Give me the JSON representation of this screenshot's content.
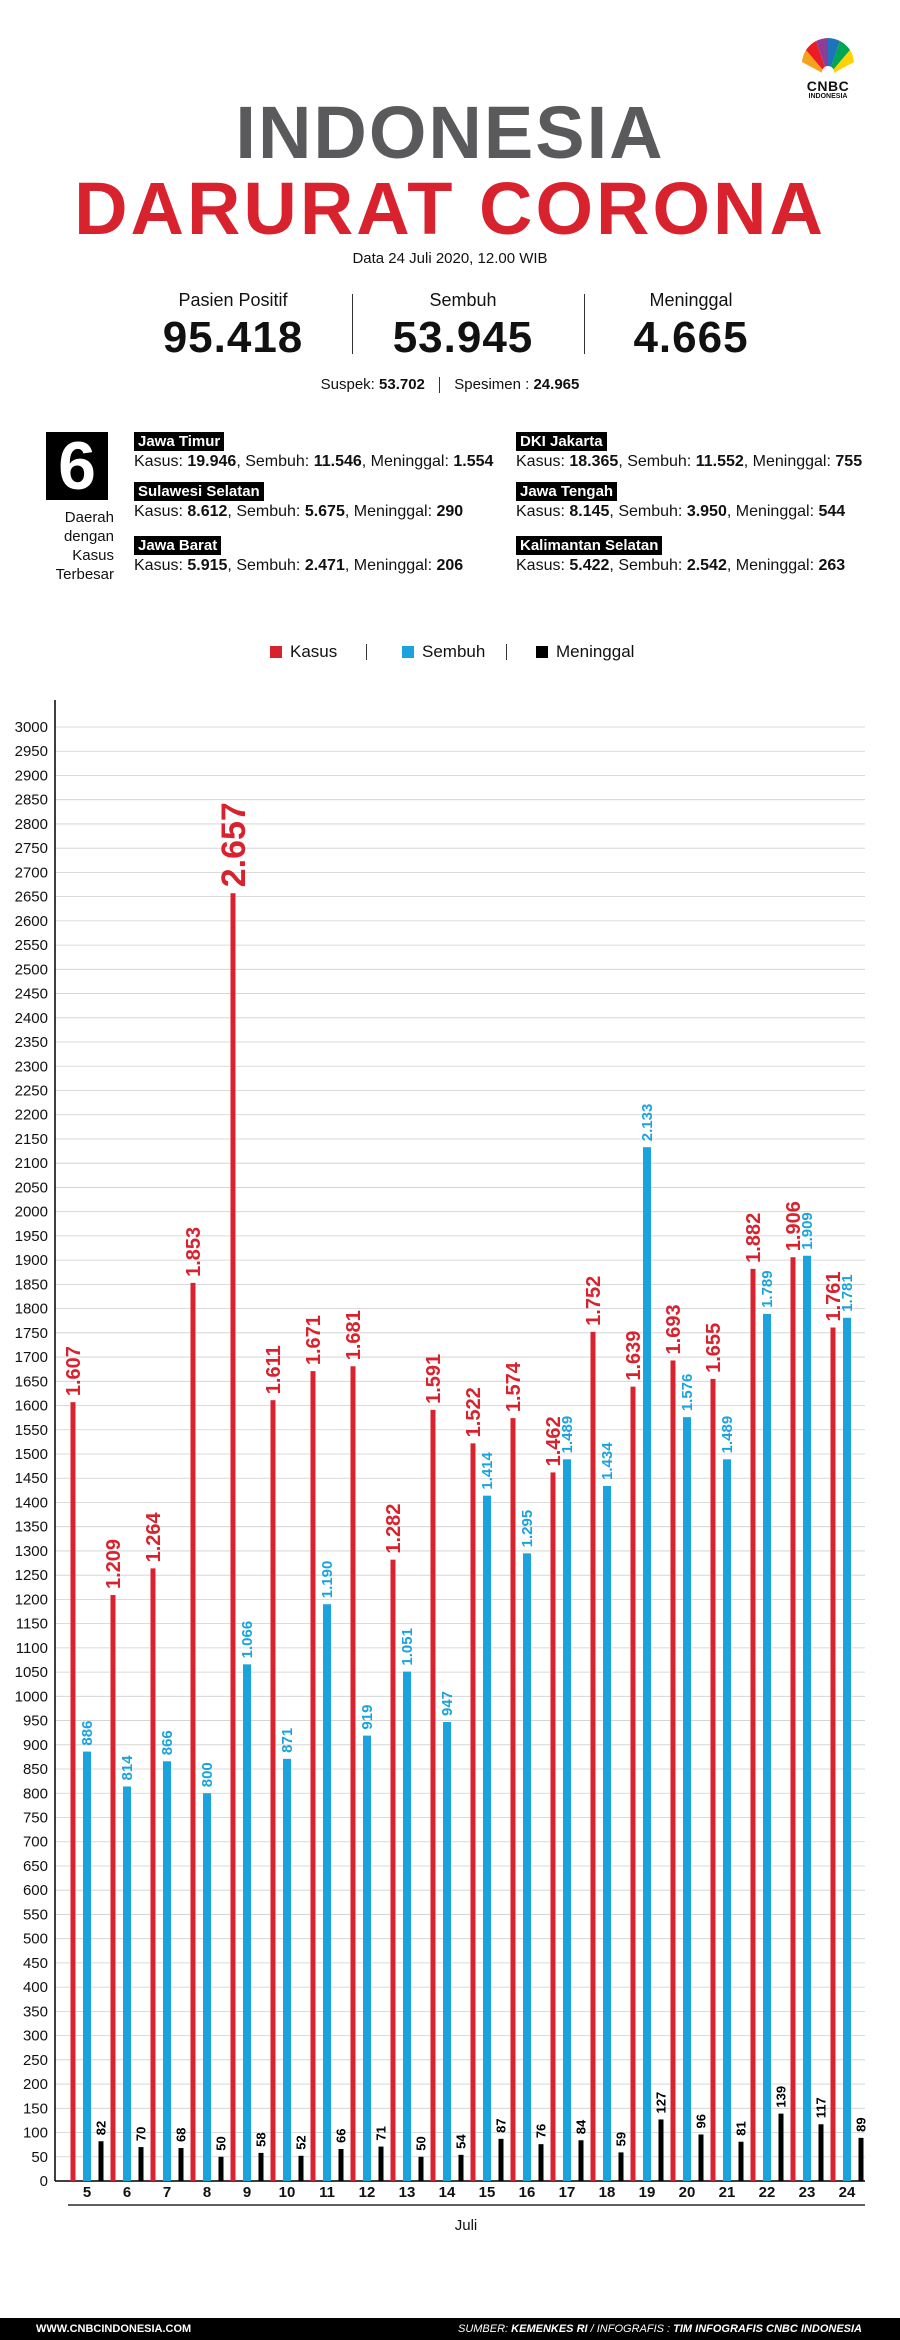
{
  "brand": {
    "name": "CNBC",
    "sub": "INDONESIA"
  },
  "title_line1": "INDONESIA",
  "title_line2": "DARURAT CORONA",
  "date": "Data 24 Juli 2020, 12.00 WIB",
  "stats": [
    {
      "label": "Pasien Positif",
      "value": "95.418"
    },
    {
      "label": "Sembuh",
      "value": "53.945"
    },
    {
      "label": "Meninggal",
      "value": "4.665"
    }
  ],
  "suspek": {
    "label": "Suspek:",
    "value": "53.702",
    "label2": "Spesimen :",
    "value2": "24.965"
  },
  "top_regions": {
    "count": "6",
    "caption": [
      "Daerah",
      "dengan",
      "Kasus",
      "Terbesar"
    ],
    "items": [
      {
        "name": "Jawa Timur",
        "kasus": "19.946",
        "sembuh": "11.546",
        "meninggal": "1.554"
      },
      {
        "name": "Sulawesi Selatan",
        "kasus": "8.612",
        "sembuh": "5.675",
        "meninggal": "290"
      },
      {
        "name": "Jawa Barat",
        "kasus": "5.915",
        "sembuh": "2.471",
        "meninggal": "206"
      },
      {
        "name": "DKI Jakarta",
        "kasus": "18.365",
        "sembuh": "11.552",
        "meninggal": "755"
      },
      {
        "name": "Jawa Tengah",
        "kasus": "8.145",
        "sembuh": "3.950",
        "meninggal": "544"
      },
      {
        "name": "Kalimantan Selatan",
        "kasus": "5.422",
        "sembuh": "2.542",
        "meninggal": "263"
      }
    ],
    "labels": {
      "kasus": "Kasus:",
      "sembuh": "Sembuh:",
      "meninggal": "Meninggal:"
    }
  },
  "colors": {
    "kasus": "#d8232f",
    "sembuh": "#1aa3dc",
    "meninggal": "#000000",
    "title_gray": "#5a5a5c"
  },
  "chart_data": {
    "type": "bar",
    "categories": [
      "5",
      "6",
      "7",
      "8",
      "9",
      "10",
      "11",
      "12",
      "13",
      "14",
      "15",
      "16",
      "17",
      "18",
      "19",
      "20",
      "21",
      "22",
      "23",
      "24"
    ],
    "series": [
      {
        "name": "Kasus",
        "values": [
          1607,
          1209,
          1264,
          1853,
          2657,
          1611,
          1671,
          1681,
          1282,
          1591,
          1522,
          1574,
          1462,
          1752,
          1639,
          1693,
          1655,
          1882,
          1906,
          1761
        ],
        "labels": [
          "1.607",
          "1.209",
          "1.264",
          "1.853",
          "2.657",
          "1.611",
          "1.671",
          "1.681",
          "1.282",
          "1.591",
          "1.522",
          "1.574",
          "1.462",
          "1.752",
          "1.639",
          "1.693",
          "1.655",
          "1.882",
          "1.906",
          "1.761"
        ]
      },
      {
        "name": "Sembuh",
        "values": [
          886,
          814,
          866,
          800,
          1066,
          871,
          1190,
          919,
          1051,
          947,
          1414,
          1295,
          1489,
          1434,
          2133,
          1576,
          1489,
          1789,
          1909,
          1781
        ],
        "labels": [
          "886",
          "814",
          "866",
          "800",
          "1.066",
          "871",
          "1.190",
          "919",
          "1.051",
          "947",
          "1.414",
          "1.295",
          "1.489",
          "1.434",
          "2.133",
          "1.576",
          "1.489",
          "1.789",
          "1.909",
          "1.781"
        ]
      },
      {
        "name": "Meninggal",
        "values": [
          82,
          70,
          68,
          50,
          58,
          52,
          66,
          71,
          50,
          54,
          87,
          76,
          84,
          59,
          127,
          96,
          81,
          139,
          117,
          89
        ],
        "labels": [
          "82",
          "70",
          "68",
          "50",
          "58",
          "52",
          "66",
          "71",
          "50",
          "54",
          "87",
          "76",
          "84",
          "59",
          "127",
          "96",
          "81",
          "139",
          "117",
          "89"
        ]
      }
    ],
    "xlabel": "Juli",
    "ylabel": "",
    "ylim": [
      0,
      3000
    ],
    "yticks": [
      0,
      50,
      100,
      150,
      200,
      250,
      300,
      350,
      400,
      450,
      500,
      550,
      600,
      650,
      700,
      750,
      800,
      850,
      900,
      950,
      1000,
      1050,
      1100,
      1150,
      1200,
      1250,
      1300,
      1350,
      1400,
      1450,
      1500,
      1550,
      1600,
      1650,
      1700,
      1750,
      1800,
      1850,
      1900,
      1950,
      2000,
      2050,
      2100,
      2150,
      2200,
      2250,
      2300,
      2350,
      2400,
      2450,
      2500,
      2550,
      2600,
      2650,
      2700,
      2750,
      2800,
      2850,
      2900,
      2950,
      3000
    ],
    "grid": true,
    "legend": "top-center"
  },
  "footer": {
    "site": "WWW.CNBCINDONESIA.COM",
    "source_label": "SUMBER:",
    "source": "KEMENKES RI",
    "info_label": "/ INFOGRAFIS :",
    "info": "TIM INFOGRAFIS CNBC INDONESIA"
  }
}
